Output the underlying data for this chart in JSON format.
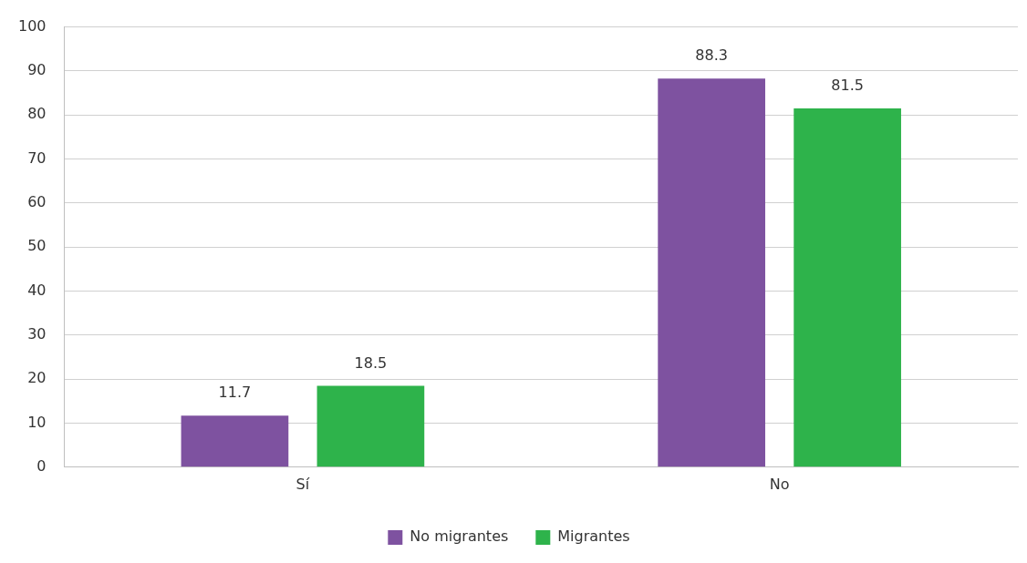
{
  "chart_data": {
    "type": "bar",
    "categories": [
      "Sí",
      "No"
    ],
    "series": [
      {
        "name": "No migrantes",
        "color": "#7e52a0",
        "values": [
          11.7,
          88.3
        ]
      },
      {
        "name": "Migrantes",
        "color": "#2eb34b",
        "values": [
          18.5,
          81.5
        ]
      }
    ],
    "ylim": [
      0,
      100
    ],
    "yticks": [
      0,
      10,
      20,
      30,
      40,
      50,
      60,
      70,
      80,
      90,
      100
    ],
    "grid": "y",
    "legend": "bottom",
    "data_labels": true
  }
}
